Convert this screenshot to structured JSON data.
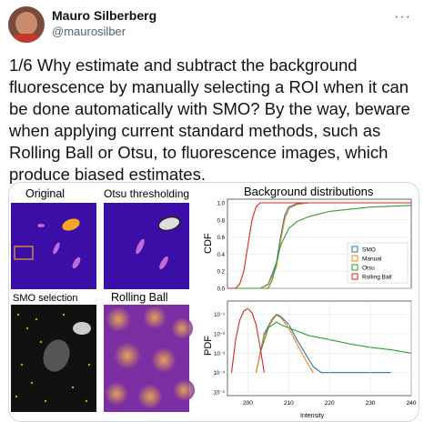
{
  "tweet": {
    "author_name": "Mauro Silberberg",
    "author_handle": "@maurosilber",
    "more_icon": "more-dots-icon",
    "text": "1/6 Why estimate and subtract the background fluorescence by manually selecting a ROI when it can be done automatically with SMO? By the way, beware when applying current standard methods, such as Rolling Ball or Otsu, to fluorescence images, which produce biased estimates."
  },
  "figure": {
    "panels": {
      "original": "Original",
      "otsu": "Otsu thresholding",
      "smo": "SMO selection",
      "rolling": "Rolling Ball"
    },
    "chart_title": "Background distributions",
    "cdf_ylabel": "CDF",
    "pdf_ylabel": "PDF",
    "xlabel": "Intensity",
    "legend": [
      "SMO",
      "Manual",
      "Otsu",
      "Rolling Ball"
    ],
    "colors": {
      "SMO": "#1f77b4",
      "Manual": "#ff7f0e",
      "Otsu": "#2ca02c",
      "Rolling Ball": "#d62728"
    },
    "cdf_yticks": [
      "1.0",
      "0.8",
      "0.6",
      "0.4",
      "0.2",
      "0.0"
    ],
    "pdf_yticks": [
      "10⁻¹",
      "10⁻²",
      "10⁻³",
      "10⁻⁴",
      "10⁻⁵"
    ],
    "xticks": [
      "200",
      "210",
      "220",
      "230",
      "240"
    ]
  },
  "chart_data": [
    {
      "type": "line",
      "title": "Background distributions",
      "ylabel": "CDF",
      "xlim": [
        195,
        240
      ],
      "ylim": [
        0,
        1
      ],
      "grid": true,
      "legend_position": "bottom-right",
      "series": [
        {
          "name": "SMO",
          "x": [
            195,
            203,
            205,
            207,
            208,
            209,
            210,
            212,
            215,
            220,
            240
          ],
          "values": [
            0,
            0,
            0.05,
            0.3,
            0.6,
            0.85,
            0.95,
            0.99,
            1,
            1,
            1
          ]
        },
        {
          "name": "Manual",
          "x": [
            195,
            203,
            205,
            207,
            208,
            209,
            210,
            212,
            215,
            220,
            240
          ],
          "values": [
            0,
            0,
            0.04,
            0.25,
            0.55,
            0.8,
            0.93,
            0.98,
            1,
            1,
            1
          ]
        },
        {
          "name": "Otsu",
          "x": [
            195,
            205,
            206,
            207,
            208,
            210,
            212,
            215,
            220,
            230,
            240
          ],
          "values": [
            0,
            0,
            0.1,
            0.3,
            0.5,
            0.7,
            0.78,
            0.84,
            0.9,
            0.95,
            0.97
          ]
        },
        {
          "name": "Rolling Ball",
          "x": [
            195,
            197,
            198,
            199,
            200,
            201,
            202,
            203,
            205,
            240
          ],
          "values": [
            0,
            0,
            0.05,
            0.2,
            0.5,
            0.8,
            0.95,
            1,
            1,
            1
          ]
        }
      ]
    },
    {
      "type": "line",
      "ylabel": "PDF",
      "xlabel": "Intensity",
      "xlim": [
        195,
        240
      ],
      "yscale": "log",
      "ylim": [
        1e-05,
        0.3
      ],
      "grid": true,
      "series": [
        {
          "name": "SMO",
          "x": [
            202,
            204,
            206,
            207,
            208,
            210,
            212,
            214,
            216,
            218,
            220,
            225,
            230,
            235
          ],
          "values": [
            0.0001,
            0.01,
            0.06,
            0.1,
            0.08,
            0.03,
            0.005,
            0.001,
            0.0002,
            0.0001,
            0.0001,
            0.0001,
            0.0001,
            0.0001
          ]
        },
        {
          "name": "Manual",
          "x": [
            202,
            204,
            206,
            207,
            208,
            210,
            212,
            214,
            216
          ],
          "values": [
            0.0001,
            0.008,
            0.05,
            0.09,
            0.07,
            0.02,
            0.003,
            0.0005,
            0.0001
          ]
        },
        {
          "name": "Otsu",
          "x": [
            203,
            205,
            207,
            208,
            210,
            215,
            220,
            225,
            230,
            235,
            240
          ],
          "values": [
            0.001,
            0.02,
            0.04,
            0.03,
            0.02,
            0.008,
            0.005,
            0.003,
            0.002,
            0.0015,
            0.001
          ]
        },
        {
          "name": "Rolling Ball",
          "x": [
            196,
            197,
            198,
            199,
            200,
            201,
            202,
            203,
            204
          ],
          "values": [
            0.0001,
            0.005,
            0.05,
            0.15,
            0.2,
            0.12,
            0.03,
            0.002,
            0.0001
          ]
        }
      ]
    }
  ]
}
